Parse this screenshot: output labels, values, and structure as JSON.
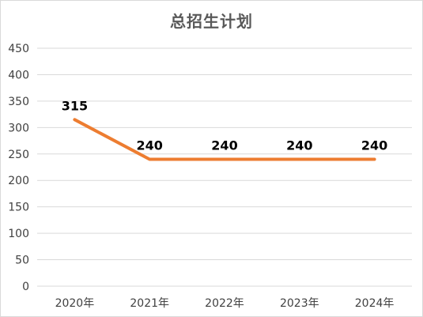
{
  "chart_data": {
    "type": "line",
    "title": "总招生计划",
    "xlabel": "",
    "ylabel": "",
    "categories": [
      "2020年",
      "2021年",
      "2022年",
      "2023年",
      "2024年"
    ],
    "series": [
      {
        "values": [
          315,
          240,
          240,
          240,
          240
        ],
        "color": "#ED7D31"
      }
    ],
    "data_labels": [
      "315",
      "240",
      "240",
      "240",
      "240"
    ],
    "ylim": [
      0,
      450
    ],
    "yticks": [
      0,
      50,
      100,
      150,
      200,
      250,
      300,
      350,
      400,
      450
    ],
    "ytick_labels": [
      "0",
      "50",
      "100",
      "150",
      "200",
      "250",
      "300",
      "350",
      "400",
      "450"
    ],
    "grid": true,
    "legend": "none",
    "gridline_color": "#d9d9d9"
  }
}
